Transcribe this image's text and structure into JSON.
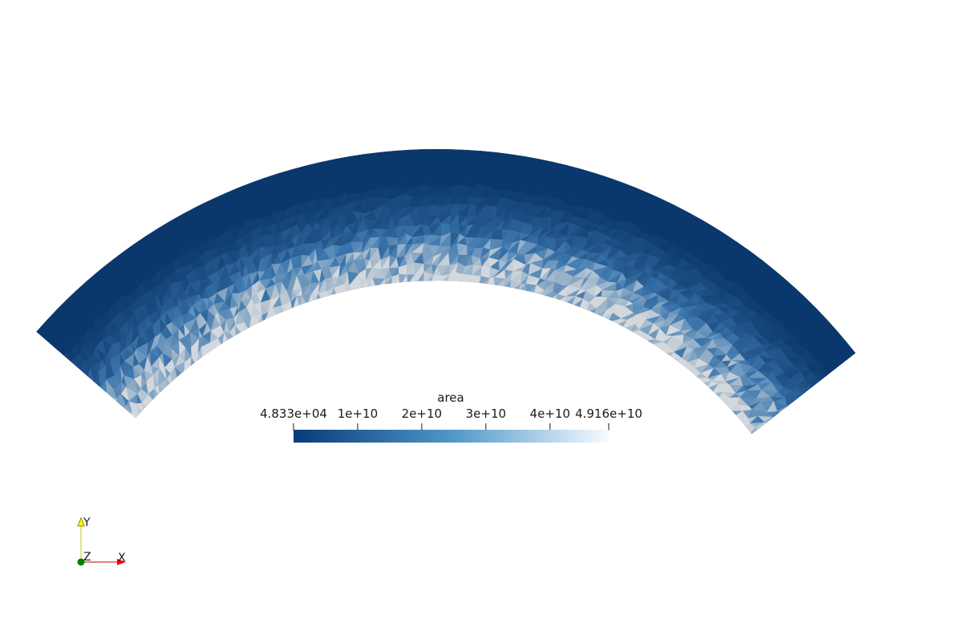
{
  "render_view": {
    "background": "#ffffff",
    "field_name": "area",
    "colormap": {
      "low": "#083a79",
      "mid": "#4f97c8",
      "high": "#f7fbff"
    },
    "mesh_colors": {
      "outer_band": "#0d3a6a",
      "sample_cells": [
        "#4b7fb0",
        "#6e9cc3",
        "#9bb5cc",
        "#c7d0d8",
        "#2f6aa3",
        "#1f5694",
        "#85a6c5",
        "#dfe3e6"
      ]
    }
  },
  "scalar_bar": {
    "title": "area",
    "range": [
      48330,
      49160000000
    ],
    "ticks": [
      {
        "label": "4.833e+04",
        "value": 48330
      },
      {
        "label": "1e+10",
        "value": 10000000000
      },
      {
        "label": "2e+10",
        "value": 20000000000
      },
      {
        "label": "3e+10",
        "value": 30000000000
      },
      {
        "label": "4e+10",
        "value": 40000000000
      },
      {
        "label": "4.916e+10",
        "value": 49160000000
      }
    ]
  },
  "orientation_axes": {
    "x_label": "X",
    "y_label": "Y",
    "z_label": "Z",
    "x_color": "#ff0000",
    "y_color": "#ffff00",
    "z_color": "#008000"
  }
}
